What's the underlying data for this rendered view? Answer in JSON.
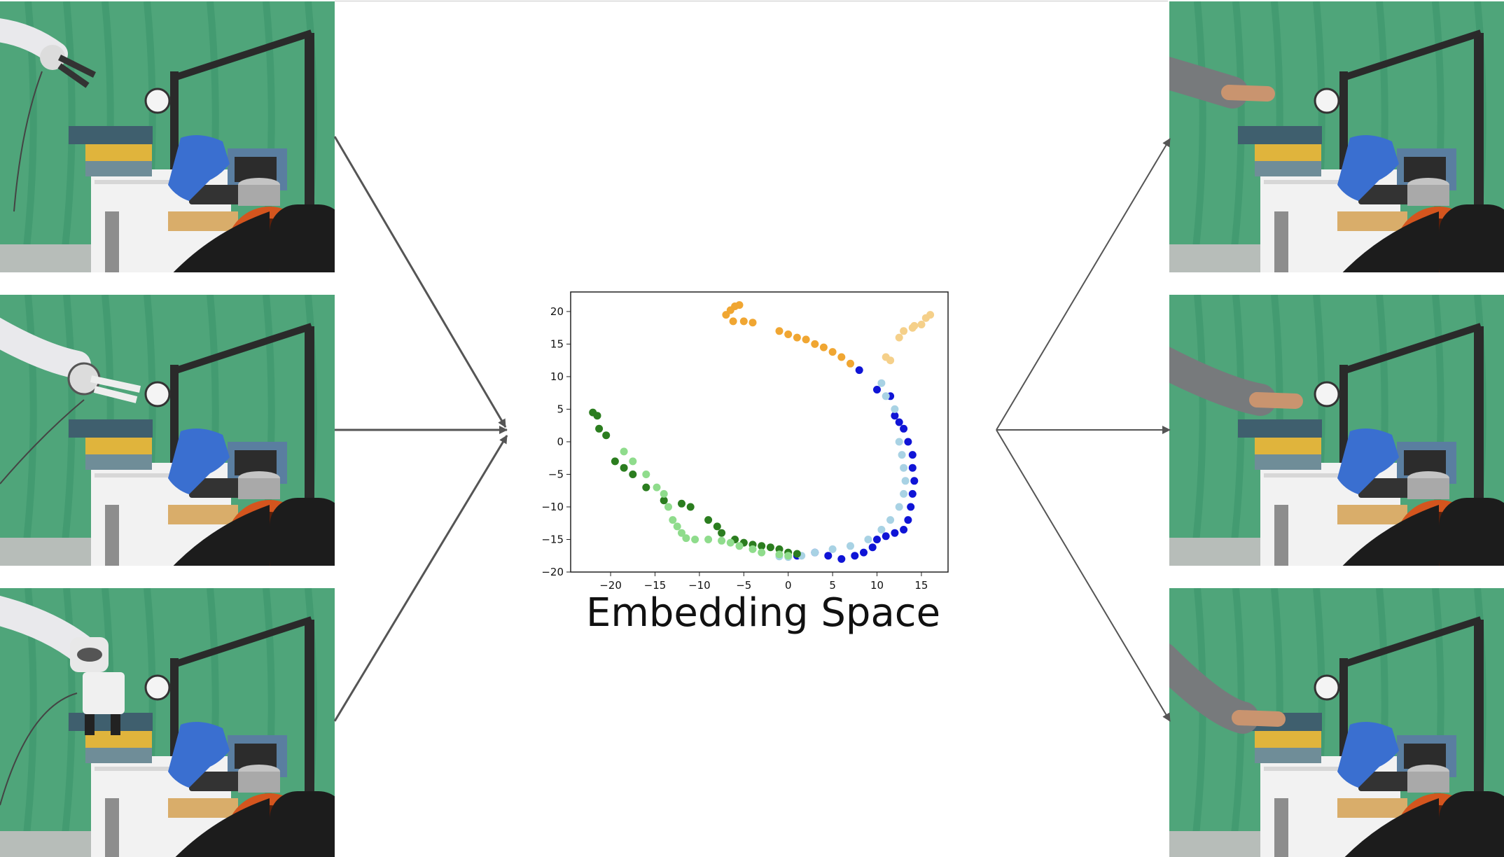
{
  "caption": "Embedding Space",
  "palette": {
    "background": "#ffffff",
    "arrow": "#555555",
    "green_screen": "#4fa57a",
    "green_screen_dark": "#2f8a60",
    "drawer_blue": "#3f5f6e",
    "drawer_yellow": "#e0b43c",
    "towel_blue": "#3a6fd0",
    "cabinet_white": "#f2f2f2",
    "robot_white": "#e9e9ec",
    "sleeve_gray": "#777a7c",
    "skin": "#c9946f",
    "bumper_orange": "#d4551e",
    "bumper_black": "#1c1c1c"
  },
  "left_frames": [
    {
      "name": "robot-frame-reach",
      "subject": "robot",
      "pose": "reach"
    },
    {
      "name": "robot-frame-approach",
      "subject": "robot",
      "pose": "approach"
    },
    {
      "name": "robot-frame-grasp",
      "subject": "robot",
      "pose": "grasp"
    }
  ],
  "right_frames": [
    {
      "name": "human-frame-reach",
      "subject": "human",
      "pose": "reach"
    },
    {
      "name": "human-frame-approach",
      "subject": "human",
      "pose": "approach"
    },
    {
      "name": "human-frame-grasp",
      "subject": "human",
      "pose": "grasp"
    }
  ],
  "chart_data": {
    "type": "scatter",
    "title": "",
    "xlabel": "",
    "ylabel": "",
    "xlim": [
      -24.5,
      18
    ],
    "ylim": [
      -20,
      23
    ],
    "xticks": [
      -20,
      -15,
      -10,
      -5,
      0,
      5,
      10,
      15
    ],
    "yticks": [
      -20,
      -15,
      -10,
      -5,
      0,
      5,
      10,
      15,
      20
    ],
    "grid": false,
    "series": [
      {
        "color": "#f0a632",
        "points": [
          [
            -7,
            19.5
          ],
          [
            -6.5,
            20.2
          ],
          [
            -6,
            20.8
          ],
          [
            -5.5,
            21
          ],
          [
            -6.2,
            18.5
          ],
          [
            -5,
            18.5
          ],
          [
            -4,
            18.3
          ],
          [
            -1,
            17
          ],
          [
            0,
            16.5
          ],
          [
            1,
            16
          ],
          [
            2,
            15.7
          ],
          [
            3,
            15
          ],
          [
            4,
            14.5
          ],
          [
            5,
            13.8
          ],
          [
            6,
            13
          ],
          [
            7,
            12
          ]
        ]
      },
      {
        "color": "#f5d08a",
        "points": [
          [
            11,
            13
          ],
          [
            11.5,
            12.5
          ],
          [
            12.5,
            16
          ],
          [
            13,
            17
          ],
          [
            14,
            17.5
          ],
          [
            15,
            18
          ],
          [
            15.5,
            19
          ],
          [
            16,
            19.5
          ],
          [
            14.2,
            17.8
          ]
        ]
      },
      {
        "color": "#0f14d6",
        "points": [
          [
            8,
            11
          ],
          [
            10,
            8
          ],
          [
            11.5,
            7
          ],
          [
            12,
            4
          ],
          [
            12.5,
            3
          ],
          [
            13,
            2
          ],
          [
            13.5,
            0
          ],
          [
            14,
            -2
          ],
          [
            14,
            -4
          ],
          [
            14.2,
            -6
          ],
          [
            14,
            -8
          ],
          [
            13.8,
            -10
          ],
          [
            13.5,
            -12
          ],
          [
            13,
            -13.5
          ],
          [
            12,
            -14
          ],
          [
            11,
            -14.5
          ],
          [
            10,
            -15
          ],
          [
            9.5,
            -16.2
          ],
          [
            8.5,
            -17
          ],
          [
            7.5,
            -17.5
          ],
          [
            6,
            -18
          ],
          [
            4.5,
            -17.5
          ],
          [
            3,
            -17
          ],
          [
            1,
            -17.5
          ]
        ]
      },
      {
        "color": "#a8d2e4",
        "points": [
          [
            10.5,
            9
          ],
          [
            11,
            7
          ],
          [
            12,
            5
          ],
          [
            12.5,
            0
          ],
          [
            12.8,
            -2
          ],
          [
            13,
            -4
          ],
          [
            13.2,
            -6
          ],
          [
            13,
            -8
          ],
          [
            12.5,
            -10
          ],
          [
            11.5,
            -12
          ],
          [
            10.5,
            -13.5
          ],
          [
            9,
            -15
          ],
          [
            7,
            -16
          ],
          [
            5,
            -16.5
          ],
          [
            3,
            -17
          ],
          [
            1.5,
            -17.5
          ],
          [
            0,
            -17.7
          ],
          [
            -1,
            -17.6
          ]
        ]
      },
      {
        "color": "#2b7d1f",
        "points": [
          [
            -22,
            4.5
          ],
          [
            -21.5,
            4
          ],
          [
            -21.3,
            2
          ],
          [
            -20.5,
            1
          ],
          [
            -19.5,
            -3
          ],
          [
            -18.5,
            -4
          ],
          [
            -17.5,
            -5
          ],
          [
            -16,
            -7
          ],
          [
            -14,
            -9
          ],
          [
            -12,
            -9.5
          ],
          [
            -11,
            -10
          ],
          [
            -9,
            -12
          ],
          [
            -8,
            -13
          ],
          [
            -7.5,
            -14
          ],
          [
            -6,
            -15
          ],
          [
            -5,
            -15.5
          ],
          [
            -4,
            -15.8
          ],
          [
            -3,
            -16
          ],
          [
            -2,
            -16.2
          ],
          [
            -1,
            -16.5
          ],
          [
            0,
            -17
          ],
          [
            1,
            -17.2
          ]
        ]
      },
      {
        "color": "#8fdc8c",
        "points": [
          [
            -18.5,
            -1.5
          ],
          [
            -17.5,
            -3
          ],
          [
            -16,
            -5
          ],
          [
            -14.8,
            -7
          ],
          [
            -14,
            -8
          ],
          [
            -13.5,
            -10
          ],
          [
            -13,
            -12
          ],
          [
            -12.5,
            -13
          ],
          [
            -12,
            -14
          ],
          [
            -11.5,
            -14.8
          ],
          [
            -10.5,
            -15
          ],
          [
            -9,
            -15
          ],
          [
            -7.5,
            -15.2
          ],
          [
            -6.5,
            -15.5
          ],
          [
            -5.5,
            -16
          ],
          [
            -4,
            -16.5
          ],
          [
            -3,
            -17
          ],
          [
            -1,
            -17.3
          ],
          [
            0,
            -17.5
          ]
        ]
      }
    ]
  }
}
